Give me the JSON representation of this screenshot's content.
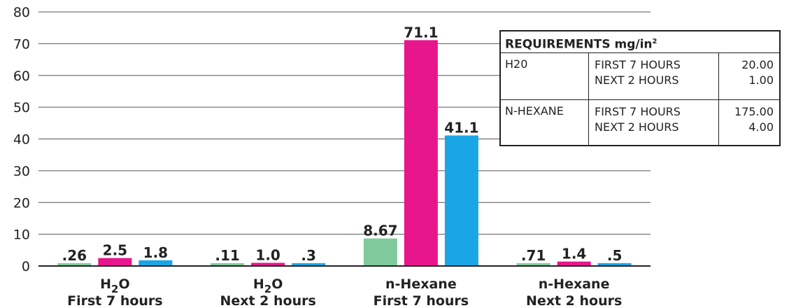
{
  "chart_data": {
    "type": "bar",
    "categories": [
      {
        "line1_main": "H",
        "line1_sub": "2",
        "line1_rest": "O",
        "line2": "First 7 hours"
      },
      {
        "line1_main": "H",
        "line1_sub": "2",
        "line1_rest": "O",
        "line2": "Next 2 hours"
      },
      {
        "line1_main": "n-Hexane",
        "line1_sub": "",
        "line1_rest": "",
        "line2": "First 7 hours"
      },
      {
        "line1_main": "n-Hexane",
        "line1_sub": "",
        "line1_rest": "",
        "line2": "Next 2 hours"
      }
    ],
    "series": [
      {
        "color": "#7fc99a",
        "values": [
          0.26,
          0.11,
          8.67,
          0.71
        ],
        "labels": [
          ".26",
          ".11",
          "8.67",
          ".71"
        ]
      },
      {
        "color": "#e8168c",
        "values": [
          2.5,
          1.0,
          71.1,
          1.4
        ],
        "labels": [
          "2.5",
          "1.0",
          "71.1",
          "1.4"
        ]
      },
      {
        "color": "#1aa6e6",
        "values": [
          1.8,
          0.3,
          41.1,
          0.5
        ],
        "labels": [
          "1.8",
          ".3",
          "41.1",
          ".5"
        ]
      }
    ],
    "ylim": [
      0,
      80
    ],
    "yticks": [
      "0",
      "10",
      "20",
      "30",
      "40",
      "50",
      "60",
      "70",
      "80"
    ],
    "grid": true,
    "legend": "none"
  },
  "requirements_table": {
    "title": "REQUIREMENTS mg/in",
    "title_superscript": "2",
    "rows": [
      {
        "substance": "H20",
        "periods": [
          "FIRST 7 HOURS",
          "NEXT 2 HOURS"
        ],
        "values": [
          "20.00",
          "1.00"
        ]
      },
      {
        "substance": "N-HEXANE",
        "periods": [
          "FIRST 7 HOURS",
          "NEXT 2 HOURS"
        ],
        "values": [
          "175.00",
          "4.00"
        ]
      }
    ]
  }
}
